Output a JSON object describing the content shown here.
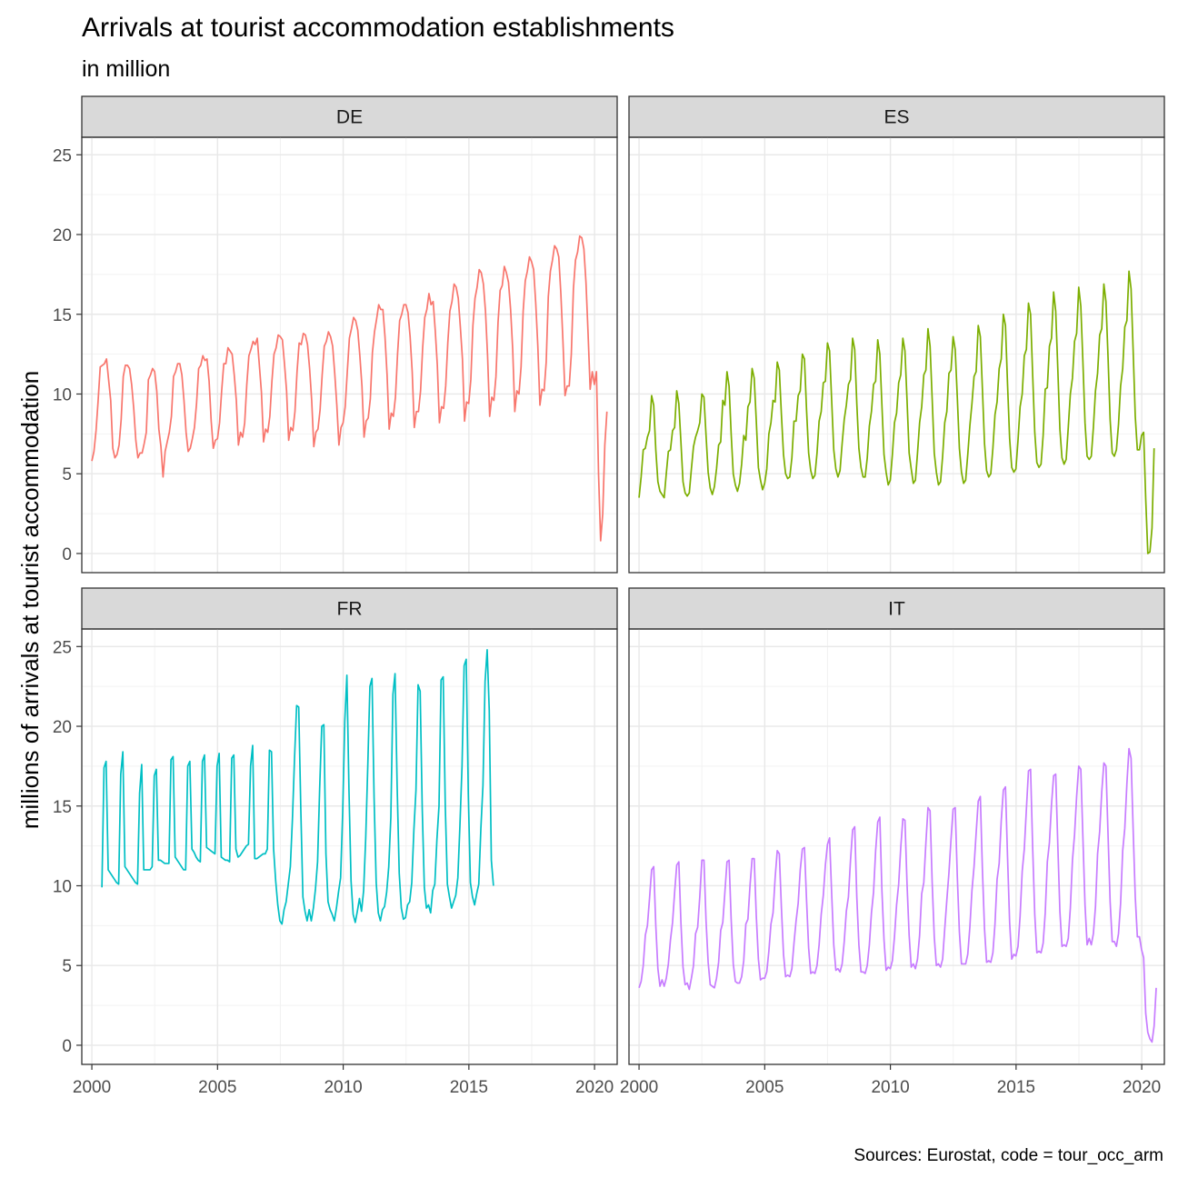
{
  "chart_data": {
    "type": "line",
    "title": "Arrivals at tourist accommodation establishments",
    "subtitle": "in million",
    "ylabel": "millions of arrivals at tourist accommodation",
    "xlabel": "",
    "caption": "Sources: Eurostat, code = tour_occ_arm",
    "xlim": [
      1999.6,
      2020.9
    ],
    "ylim": [
      -1.2,
      26.1
    ],
    "x_ticks": [
      2000,
      2005,
      2010,
      2015,
      2020
    ],
    "y_ticks": [
      0,
      5,
      10,
      15,
      20,
      25
    ],
    "grid": true,
    "legend": "none",
    "facet_layout": "2x2",
    "series": [
      {
        "name": "DE",
        "color": "#F8766D",
        "x_start": 2000.0,
        "step": 0.0833,
        "values": [
          5.8,
          6.4,
          7.7,
          9.6,
          11.7,
          11.8,
          11.9,
          12.2,
          10.9,
          9.6,
          6.6,
          6.0,
          6.2,
          6.8,
          8.4,
          11.1,
          11.8,
          11.8,
          11.6,
          10.6,
          9.1,
          7.1,
          6.0,
          6.3,
          6.3,
          6.9,
          7.6,
          10.9,
          11.2,
          11.6,
          11.4,
          10.2,
          7.8,
          6.7,
          4.8,
          6.4,
          7.0,
          7.6,
          8.6,
          11.1,
          11.4,
          11.9,
          11.9,
          11.2,
          9.6,
          7.6,
          6.4,
          6.6,
          7.2,
          7.9,
          9.4,
          11.6,
          11.8,
          12.4,
          12.1,
          12.2,
          10.8,
          8.3,
          6.6,
          7.1,
          7.2,
          8.2,
          10.2,
          11.9,
          11.9,
          12.9,
          12.7,
          12.5,
          11.2,
          9.6,
          6.8,
          7.6,
          7.3,
          8.2,
          10.6,
          12.4,
          12.8,
          13.3,
          13.1,
          13.5,
          11.8,
          10.1,
          7.0,
          7.8,
          7.6,
          8.6,
          10.8,
          12.5,
          12.9,
          13.7,
          13.6,
          13.4,
          11.9,
          10.2,
          7.1,
          7.9,
          7.7,
          8.9,
          11.4,
          13.2,
          13.1,
          13.8,
          13.7,
          13.1,
          11.6,
          9.6,
          6.7,
          7.6,
          7.8,
          9.0,
          11.2,
          13.0,
          13.3,
          13.9,
          13.6,
          13.0,
          11.3,
          9.3,
          6.8,
          7.9,
          8.2,
          9.2,
          11.4,
          13.5,
          14.1,
          14.8,
          14.6,
          14.0,
          12.4,
          10.5,
          7.3,
          8.3,
          8.5,
          9.7,
          12.6,
          13.9,
          14.7,
          15.6,
          15.3,
          15.3,
          13.6,
          11.2,
          7.8,
          8.8,
          8.6,
          9.8,
          12.5,
          14.6,
          15.0,
          15.6,
          15.6,
          15.1,
          13.6,
          11.4,
          7.9,
          8.9,
          8.9,
          10.2,
          12.9,
          14.8,
          15.3,
          16.3,
          15.6,
          15.8,
          14.0,
          11.8,
          8.2,
          9.2,
          9.1,
          10.5,
          13.2,
          15.2,
          15.8,
          16.9,
          16.7,
          16.0,
          14.2,
          12.2,
          8.3,
          9.5,
          9.4,
          10.9,
          14.3,
          16.0,
          16.7,
          17.8,
          17.6,
          16.9,
          15.2,
          12.4,
          8.6,
          9.8,
          9.6,
          11.1,
          14.5,
          16.5,
          16.8,
          18.0,
          17.6,
          17.0,
          15.3,
          12.8,
          8.9,
          10.2,
          10.0,
          11.7,
          15.2,
          17.1,
          17.7,
          18.6,
          18.3,
          17.8,
          15.7,
          13.0,
          9.3,
          10.3,
          10.2,
          12.0,
          16.1,
          17.7,
          18.4,
          19.3,
          19.1,
          18.6,
          16.3,
          13.3,
          9.9,
          10.5,
          10.5,
          12.5,
          16.6,
          18.4,
          18.9,
          19.9,
          19.8,
          19.1,
          17.0,
          13.8,
          10.3,
          11.4,
          10.6,
          11.4,
          5.0,
          0.8,
          2.5,
          6.8,
          8.9
        ]
      },
      {
        "name": "ES",
        "color": "#7CAE00",
        "x_start": 2000.0,
        "step": 0.0833,
        "values": [
          3.5,
          4.8,
          6.5,
          6.6,
          7.3,
          7.7,
          9.9,
          9.3,
          6.5,
          4.5,
          3.9,
          3.7,
          3.5,
          5.0,
          6.4,
          6.5,
          7.7,
          7.9,
          10.2,
          9.4,
          7.0,
          4.5,
          3.8,
          3.6,
          3.8,
          5.3,
          6.7,
          7.3,
          7.7,
          8.2,
          10.0,
          9.8,
          7.4,
          5.1,
          4.1,
          3.7,
          4.2,
          5.3,
          6.8,
          7.0,
          9.6,
          9.3,
          11.4,
          10.5,
          7.5,
          5.0,
          4.3,
          3.9,
          4.4,
          5.6,
          7.4,
          7.1,
          9.2,
          9.5,
          11.6,
          11.0,
          8.3,
          5.4,
          4.6,
          4.0,
          4.4,
          5.3,
          7.5,
          8.2,
          9.6,
          9.5,
          12.0,
          11.5,
          8.7,
          6.2,
          5.0,
          4.7,
          4.8,
          6.0,
          8.3,
          8.3,
          9.9,
          10.2,
          12.5,
          12.2,
          9.0,
          6.3,
          5.2,
          4.7,
          4.9,
          6.3,
          8.3,
          8.9,
          10.7,
          10.8,
          13.2,
          12.7,
          9.6,
          6.5,
          5.3,
          4.8,
          5.2,
          6.9,
          8.4,
          9.3,
          10.6,
          10.9,
          13.5,
          12.8,
          9.4,
          6.6,
          5.4,
          4.8,
          4.8,
          6.0,
          8.0,
          8.9,
          10.6,
          10.8,
          13.4,
          12.5,
          9.3,
          6.2,
          5.1,
          4.3,
          4.6,
          6.2,
          8.2,
          8.8,
          10.7,
          11.2,
          13.5,
          12.7,
          9.6,
          6.3,
          5.3,
          4.4,
          4.6,
          6.3,
          8.2,
          9.2,
          11.2,
          11.5,
          14.1,
          13.0,
          9.7,
          6.3,
          5.1,
          4.3,
          4.5,
          6.1,
          8.2,
          8.9,
          11.3,
          11.5,
          13.6,
          12.8,
          9.8,
          6.6,
          5.1,
          4.4,
          4.6,
          6.2,
          8.0,
          9.4,
          11.1,
          11.4,
          14.3,
          13.6,
          10.3,
          6.9,
          5.2,
          4.8,
          5.0,
          6.6,
          8.7,
          9.5,
          11.6,
          12.2,
          15.0,
          14.3,
          10.6,
          7.2,
          5.4,
          5.1,
          5.3,
          7.1,
          9.2,
          10.0,
          12.4,
          12.8,
          15.7,
          15.0,
          11.2,
          7.6,
          5.7,
          5.4,
          5.6,
          7.4,
          10.3,
          10.4,
          13.0,
          13.5,
          16.4,
          15.2,
          11.6,
          7.8,
          6.0,
          5.6,
          5.9,
          7.9,
          10.0,
          11.0,
          13.3,
          13.8,
          16.7,
          15.5,
          12.0,
          8.2,
          6.1,
          5.9,
          6.1,
          7.9,
          10.2,
          11.3,
          13.7,
          14.1,
          16.9,
          15.8,
          12.3,
          8.4,
          6.3,
          6.1,
          6.5,
          8.1,
          10.5,
          11.6,
          14.2,
          14.6,
          17.7,
          16.6,
          12.7,
          8.6,
          6.5,
          6.5,
          7.4,
          7.6,
          3.4,
          0.0,
          0.1,
          1.6,
          6.6
        ]
      },
      {
        "name": "FR",
        "color": "#00BFC4",
        "x_start": 2000.4,
        "step": 0.0833,
        "values": [
          9.9,
          17.4,
          17.8,
          11.0,
          10.8,
          10.6,
          10.4,
          10.2,
          10.1,
          17.0,
          18.4,
          11.2,
          11.0,
          10.8,
          10.6,
          10.4,
          10.2,
          10.1,
          15.8,
          17.6,
          11.0,
          11.0,
          11.0,
          11.0,
          11.2,
          16.9,
          17.3,
          11.6,
          11.6,
          11.5,
          11.4,
          11.4,
          11.4,
          17.9,
          18.1,
          11.8,
          11.6,
          11.4,
          11.2,
          11.0,
          11.0,
          17.5,
          17.8,
          12.3,
          12.1,
          11.8,
          11.6,
          11.5,
          17.8,
          18.2,
          12.4,
          12.3,
          12.2,
          12.1,
          12.0,
          17.5,
          18.3,
          11.8,
          11.7,
          11.6,
          11.6,
          11.5,
          18.0,
          18.2,
          12.3,
          11.8,
          11.9,
          12.1,
          12.3,
          12.5,
          12.6,
          17.5,
          18.8,
          11.7,
          11.7,
          11.8,
          11.9,
          12.0,
          12.0,
          12.3,
          18.5,
          18.4,
          12.3,
          10.3,
          8.8,
          7.8,
          7.6,
          8.5,
          9.0,
          10.1,
          11.2,
          14.2,
          18.0,
          21.3,
          21.2,
          14.8,
          9.3,
          8.4,
          7.8,
          8.5,
          7.8,
          8.6,
          9.8,
          11.5,
          16.1,
          20.0,
          20.1,
          12.0,
          9.0,
          8.5,
          8.2,
          7.8,
          8.6,
          9.6,
          10.5,
          14.6,
          20.3,
          23.2,
          16.0,
          10.3,
          8.2,
          7.7,
          8.4,
          9.2,
          8.4,
          9.7,
          13.0,
          17.6,
          22.5,
          23.0,
          15.5,
          10.2,
          8.3,
          7.8,
          8.5,
          8.7,
          9.6,
          11.2,
          14.3,
          22.0,
          23.3,
          16.3,
          10.8,
          8.6,
          7.9,
          8.0,
          8.8,
          9.0,
          10.2,
          13.5,
          16.0,
          22.6,
          22.2,
          14.8,
          9.9,
          8.6,
          8.8,
          8.3,
          9.7,
          10.1,
          12.9,
          15.0,
          22.9,
          23.1,
          15.0,
          10.1,
          9.3,
          8.6,
          9.0,
          9.4,
          10.5,
          13.8,
          17.5,
          23.8,
          24.2,
          15.7,
          10.2,
          9.3,
          8.8,
          9.5,
          10.1,
          13.6,
          16.3,
          22.8,
          24.8,
          21.0,
          11.6,
          10.0
        ]
      },
      {
        "name": "IT",
        "color": "#C77CFF",
        "x_start": 2000.0,
        "step": 0.0833,
        "values": [
          3.6,
          4.0,
          5.0,
          6.9,
          7.5,
          9.2,
          11.0,
          11.2,
          7.5,
          4.8,
          3.7,
          4.1,
          3.7,
          4.2,
          5.1,
          6.6,
          7.7,
          9.6,
          11.3,
          11.5,
          7.7,
          4.9,
          3.8,
          3.9,
          3.5,
          4.2,
          5.0,
          7.0,
          7.4,
          9.3,
          11.6,
          11.6,
          7.8,
          5.2,
          3.8,
          3.7,
          3.6,
          4.2,
          5.2,
          7.2,
          7.7,
          9.6,
          11.5,
          11.6,
          7.9,
          5.1,
          4.0,
          3.9,
          3.9,
          4.3,
          5.3,
          7.6,
          7.9,
          10.0,
          11.7,
          11.7,
          8.1,
          5.4,
          4.1,
          4.2,
          4.2,
          4.6,
          5.9,
          7.6,
          8.3,
          10.5,
          12.2,
          12.0,
          8.6,
          5.7,
          4.3,
          4.4,
          4.3,
          4.8,
          6.4,
          7.8,
          8.9,
          11.0,
          12.3,
          12.4,
          9.1,
          6.1,
          4.5,
          4.6,
          4.5,
          5.0,
          6.3,
          8.2,
          9.4,
          11.3,
          12.6,
          13.0,
          9.5,
          6.3,
          4.7,
          4.8,
          4.6,
          5.1,
          6.5,
          8.4,
          9.3,
          11.6,
          13.5,
          13.7,
          9.3,
          6.3,
          4.6,
          4.6,
          4.5,
          5.0,
          6.3,
          8.3,
          9.6,
          12.2,
          14.0,
          14.3,
          9.7,
          6.6,
          4.7,
          4.9,
          4.8,
          5.3,
          6.8,
          8.8,
          10.1,
          12.4,
          14.2,
          14.1,
          10.1,
          6.9,
          4.9,
          5.1,
          4.8,
          5.4,
          6.9,
          9.5,
          10.2,
          12.7,
          14.9,
          14.7,
          10.2,
          6.8,
          5.0,
          5.1,
          4.9,
          5.4,
          7.3,
          9.1,
          10.8,
          12.9,
          14.8,
          14.9,
          10.6,
          7.1,
          5.1,
          5.1,
          5.1,
          5.7,
          7.4,
          9.7,
          11.2,
          13.3,
          15.3,
          15.6,
          11.0,
          7.3,
          5.2,
          5.3,
          5.2,
          5.8,
          7.6,
          10.4,
          11.4,
          14.1,
          16.0,
          16.2,
          11.8,
          7.7,
          5.4,
          5.7,
          5.6,
          6.2,
          8.1,
          10.9,
          12.3,
          14.8,
          17.2,
          17.3,
          12.4,
          8.2,
          5.8,
          5.9,
          5.8,
          6.4,
          8.3,
          11.5,
          12.7,
          15.1,
          16.9,
          17.0,
          12.6,
          8.4,
          6.2,
          6.3,
          6.2,
          6.7,
          8.6,
          11.6,
          13.2,
          15.6,
          17.5,
          17.3,
          13.0,
          8.8,
          6.3,
          6.7,
          6.3,
          7.0,
          8.7,
          12.0,
          13.4,
          15.9,
          17.7,
          17.5,
          13.2,
          9.0,
          6.5,
          6.5,
          6.2,
          7.0,
          8.9,
          12.2,
          13.6,
          16.4,
          18.6,
          18.0,
          13.5,
          9.3,
          6.8,
          6.8,
          6.0,
          5.5,
          2.0,
          0.8,
          0.4,
          0.2,
          1.2,
          3.6
        ]
      }
    ]
  }
}
